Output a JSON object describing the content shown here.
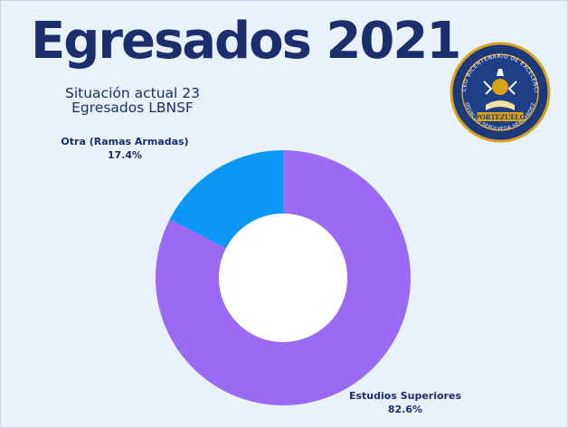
{
  "header": {
    "title": "Egresados 2021",
    "subtitle_line1": "Situación actual 23",
    "subtitle_line2": "Egresados LBNSF"
  },
  "logo": {
    "top_text": "LICEO BICENTENARIO DE EXCELENCIA",
    "banner_text": "PORTEZUELO",
    "bottom_text": "OSVALDO SEPÚLVEDA HERNÁNDEZ",
    "colors": {
      "ring": "#1c3a7a",
      "gold": "#d9a21b",
      "inner": "#1e3f86"
    }
  },
  "chart_data": {
    "type": "pie",
    "donut": true,
    "categories": [
      "Estudios Superiores",
      "Otra (Ramas Armadas)"
    ],
    "values": [
      82.6,
      17.4
    ],
    "value_labels": [
      "82.6%",
      "17.4%"
    ],
    "colors": [
      "#9a6af2",
      "#0a97f5"
    ]
  }
}
